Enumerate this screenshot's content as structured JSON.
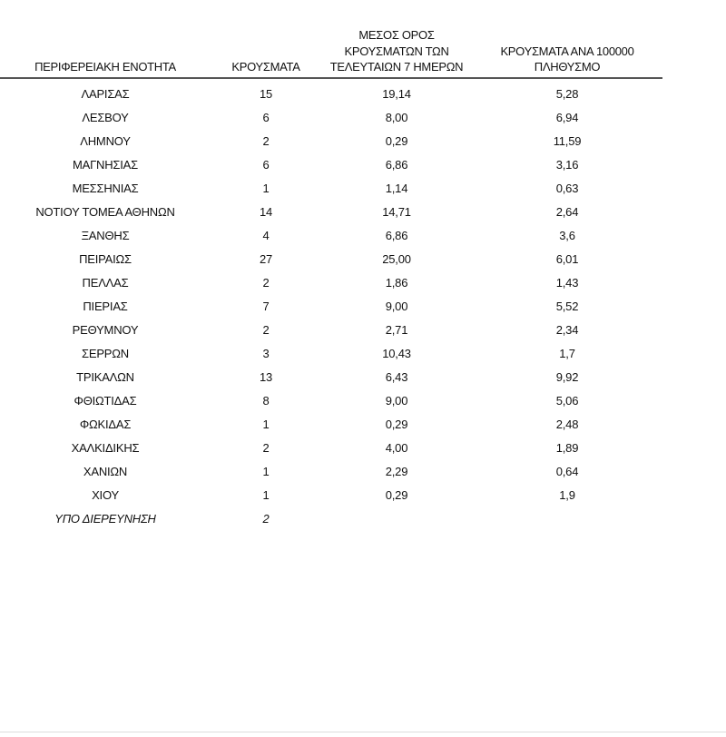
{
  "table": {
    "headers": [
      "ΠΕΡΙΦΕΡΕΙΑΚΗ ΕΝΟΤΗΤΑ",
      "ΚΡΟΥΣΜΑΤΑ",
      "ΜΕΣΟΣ ΟΡΟΣ ΚΡΟΥΣΜΑΤΩΝ ΤΩΝ ΤΕΛΕΥΤΑΙΩΝ 7 ΗΜΕΡΩΝ",
      "ΚΡΟΥΣΜΑΤΑ ΑΝΑ 100000 ΠΛΗΘΥΣΜΟ"
    ],
    "header_lines": {
      "col3": [
        "ΜΕΣΟΣ ΟΡΟΣ",
        "ΚΡΟΥΣΜΑΤΩΝ ΤΩΝ",
        "ΤΕΛΕΥΤΑΙΩΝ 7 ΗΜΕΡΩΝ"
      ],
      "col4": [
        "ΚΡΟΥΣΜΑΤΑ ΑΝΑ 100000",
        "ΠΛΗΘΥΣΜΟ"
      ]
    },
    "rows": [
      [
        "ΛΑΡΙΣΑΣ",
        "15",
        "19,14",
        "5,28"
      ],
      [
        "ΛΕΣΒΟΥ",
        "6",
        "8,00",
        "6,94"
      ],
      [
        "ΛΗΜΝΟΥ",
        "2",
        "0,29",
        "11,59"
      ],
      [
        "ΜΑΓΝΗΣΙΑΣ",
        "6",
        "6,86",
        "3,16"
      ],
      [
        "ΜΕΣΣΗΝΙΑΣ",
        "1",
        "1,14",
        "0,63"
      ],
      [
        "ΝΟΤΙΟΥ ΤΟΜΕΑ ΑΘΗΝΩΝ",
        "14",
        "14,71",
        "2,64"
      ],
      [
        "ΞΑΝΘΗΣ",
        "4",
        "6,86",
        "3,6"
      ],
      [
        "ΠΕΙΡΑΙΩΣ",
        "27",
        "25,00",
        "6,01"
      ],
      [
        "ΠΕΛΛΑΣ",
        "2",
        "1,86",
        "1,43"
      ],
      [
        "ΠΙΕΡΙΑΣ",
        "7",
        "9,00",
        "5,52"
      ],
      [
        "ΡΕΘΥΜΝΟΥ",
        "2",
        "2,71",
        "2,34"
      ],
      [
        "ΣΕΡΡΩΝ",
        "3",
        "10,43",
        "1,7"
      ],
      [
        "ΤΡΙΚΑΛΩΝ",
        "13",
        "6,43",
        "9,92"
      ],
      [
        "ΦΘΙΩΤΙΔΑΣ",
        "8",
        "9,00",
        "5,06"
      ],
      [
        "ΦΩΚΙΔΑΣ",
        "1",
        "0,29",
        "2,48"
      ],
      [
        "ΧΑΛΚΙΔΙΚΗΣ",
        "2",
        "4,00",
        "1,89"
      ],
      [
        "ΧΑΝΙΩΝ",
        "1",
        "2,29",
        "0,64"
      ],
      [
        "ΧΙΟΥ",
        "1",
        "0,29",
        "1,9"
      ],
      [
        "ΥΠΟ ΔΙΕΡΕΥΝΗΣΗ",
        "2",
        "",
        ""
      ]
    ]
  }
}
